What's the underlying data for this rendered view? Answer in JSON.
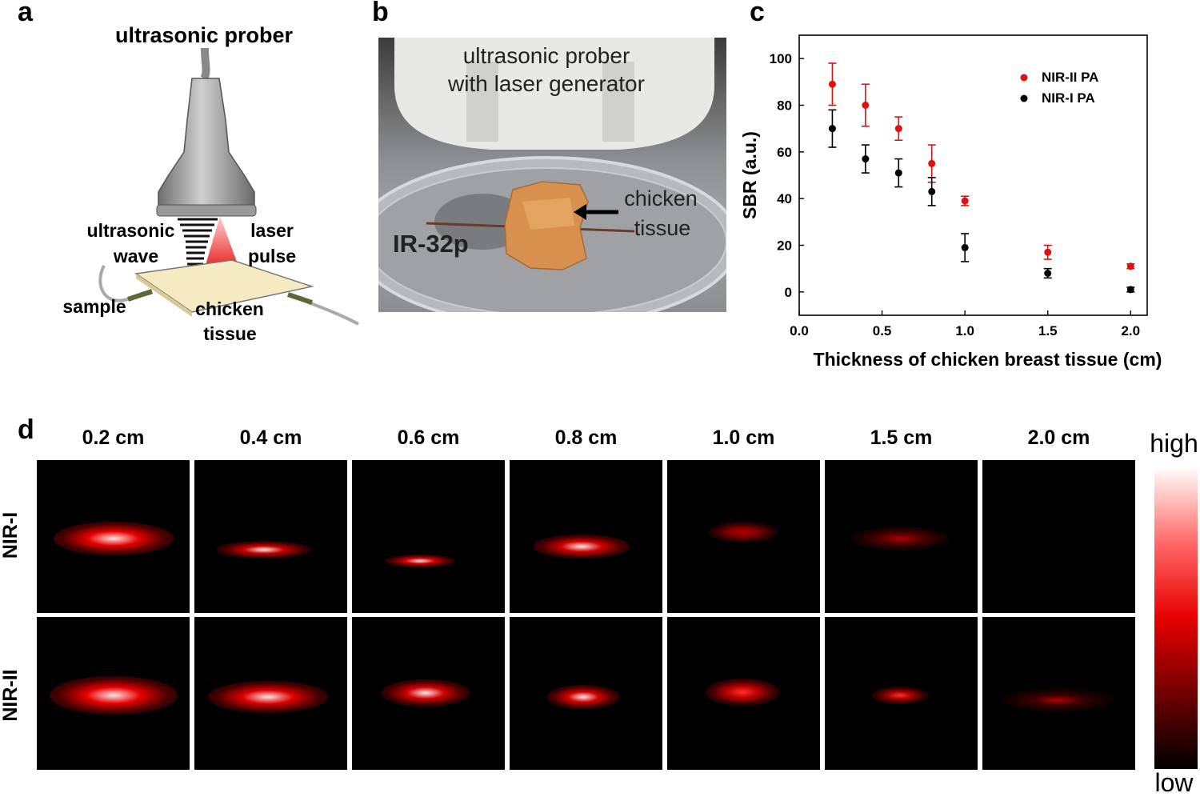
{
  "panel_a": {
    "letter": "a",
    "title": "ultrasonic prober",
    "label_ultrasonic": "ultrasonic",
    "label_wave": "wave",
    "label_laser": "laser",
    "label_pulse": "pulse",
    "label_sample": "sample",
    "label_chicken": "chicken",
    "label_tissue": "tissue"
  },
  "panel_b": {
    "letter": "b",
    "line1": "ultrasonic prober",
    "line2": "with laser generator",
    "chicken": "chicken",
    "tissue": "tissue",
    "probe_name": "IR-32p"
  },
  "panel_c": {
    "letter": "c"
  },
  "chart_data": {
    "type": "scatter",
    "xlabel": "Thickness of chicken breast tissue (cm)",
    "ylabel": "SBR (a.u.)",
    "xlim": [
      0.0,
      2.1
    ],
    "ylim": [
      -10,
      110
    ],
    "xticks": [
      "0.0",
      "0.5",
      "1.0",
      "1.5",
      "2.0"
    ],
    "yticks": [
      "0",
      "20",
      "40",
      "60",
      "80",
      "100"
    ],
    "legend": "top-right",
    "series": [
      {
        "name": "NIR-II PA",
        "color": "#e01010",
        "x": [
          0.2,
          0.4,
          0.6,
          0.8,
          1.0,
          1.5,
          2.0
        ],
        "y": [
          89,
          80,
          70,
          55,
          39,
          17,
          11
        ],
        "err": [
          9,
          9,
          5,
          8,
          2,
          3,
          1
        ]
      },
      {
        "name": "NIR-I  PA",
        "color": "#000000",
        "x": [
          0.2,
          0.4,
          0.6,
          0.8,
          1.0,
          1.5,
          2.0
        ],
        "y": [
          70,
          57,
          51,
          43,
          19,
          8,
          1
        ],
        "err": [
          8,
          6,
          6,
          6,
          6,
          2,
          1
        ]
      }
    ]
  },
  "panel_d": {
    "letter": "d",
    "columns": [
      "0.2 cm",
      "0.4 cm",
      "0.6 cm",
      "0.8 cm",
      "1.0 cm",
      "1.5 cm",
      "2.0 cm"
    ],
    "rows": [
      "NIR-I",
      "NIR-II"
    ],
    "colorbar_high": "high",
    "colorbar_low": "low"
  }
}
